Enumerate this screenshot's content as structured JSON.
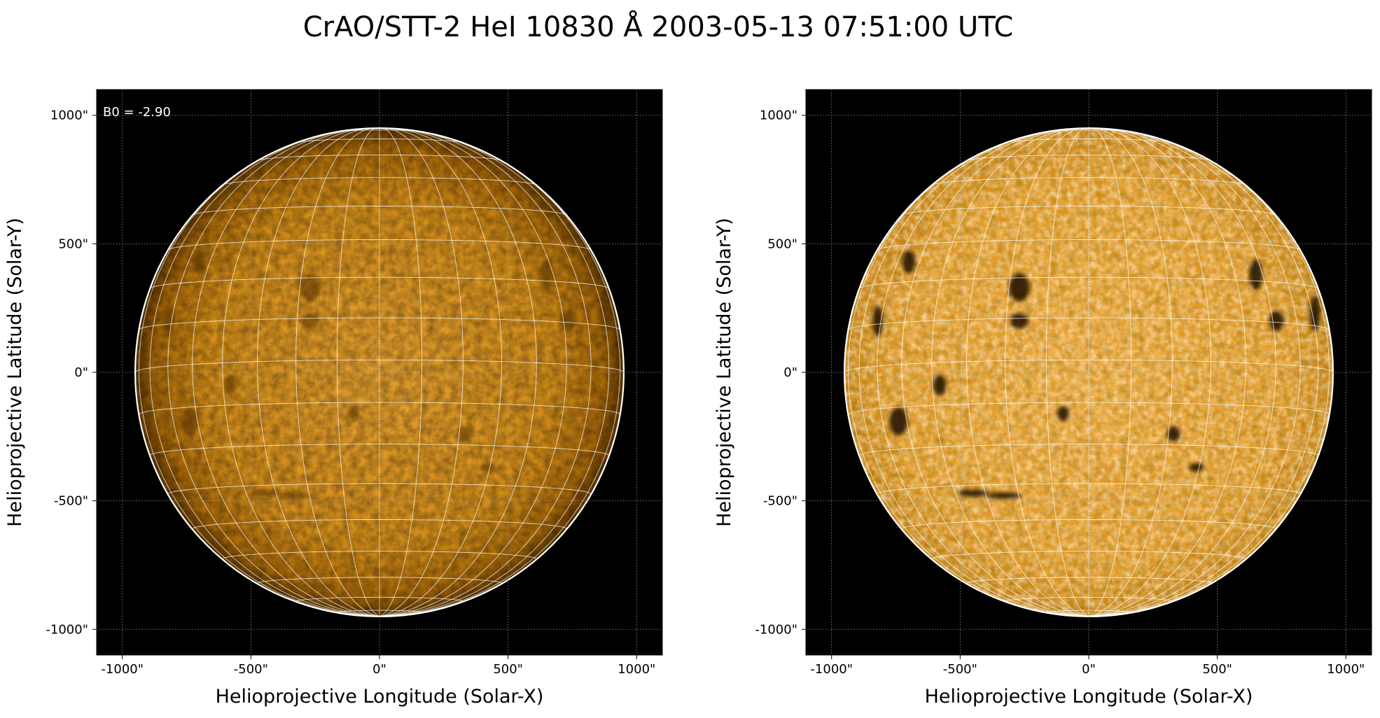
{
  "figure": {
    "title": "CrAO/STT-2 HeI 10830 Å 2003-05-13 07:51:00 UTC"
  },
  "panels": [
    {
      "id": "left",
      "annotation": "B0 = -2.90",
      "xlabel": "Helioprojective Longitude (Solar-X)",
      "ylabel": "Helioprojective Latitude (Solar-Y)",
      "xticks": [
        "-1000\"",
        "-500\"",
        "0\"",
        "500\"",
        "1000\""
      ],
      "yticks": [
        "1000\"",
        "500\"",
        "0\"",
        "-500\"",
        "-1000\""
      ],
      "contrast": "normal"
    },
    {
      "id": "right",
      "annotation": "",
      "xlabel": "Helioprojective Longitude (Solar-X)",
      "ylabel": "Helioprojective Latitude (Solar-Y)",
      "xticks": [
        "-1000\"",
        "-500\"",
        "0\"",
        "500\"",
        "1000\""
      ],
      "yticks": [
        "1000\"",
        "500\"",
        "0\"",
        "-500\"",
        "-1000\""
      ],
      "contrast": "enhanced"
    }
  ],
  "axis": {
    "range_arcsec": [
      -1100,
      1100
    ],
    "tick_values_arcsec": [
      -1000,
      -500,
      0,
      500,
      1000
    ],
    "solar_radius_arcsec": 950,
    "grid": "dotted"
  },
  "colors": {
    "background": "#000000",
    "disk_light": "#e9a63a",
    "disk_mid": "#d28a14",
    "disk_dark": "#8a5200",
    "overlay_grid": "#ffffff",
    "coord_grid": "#9a9a9a"
  }
}
